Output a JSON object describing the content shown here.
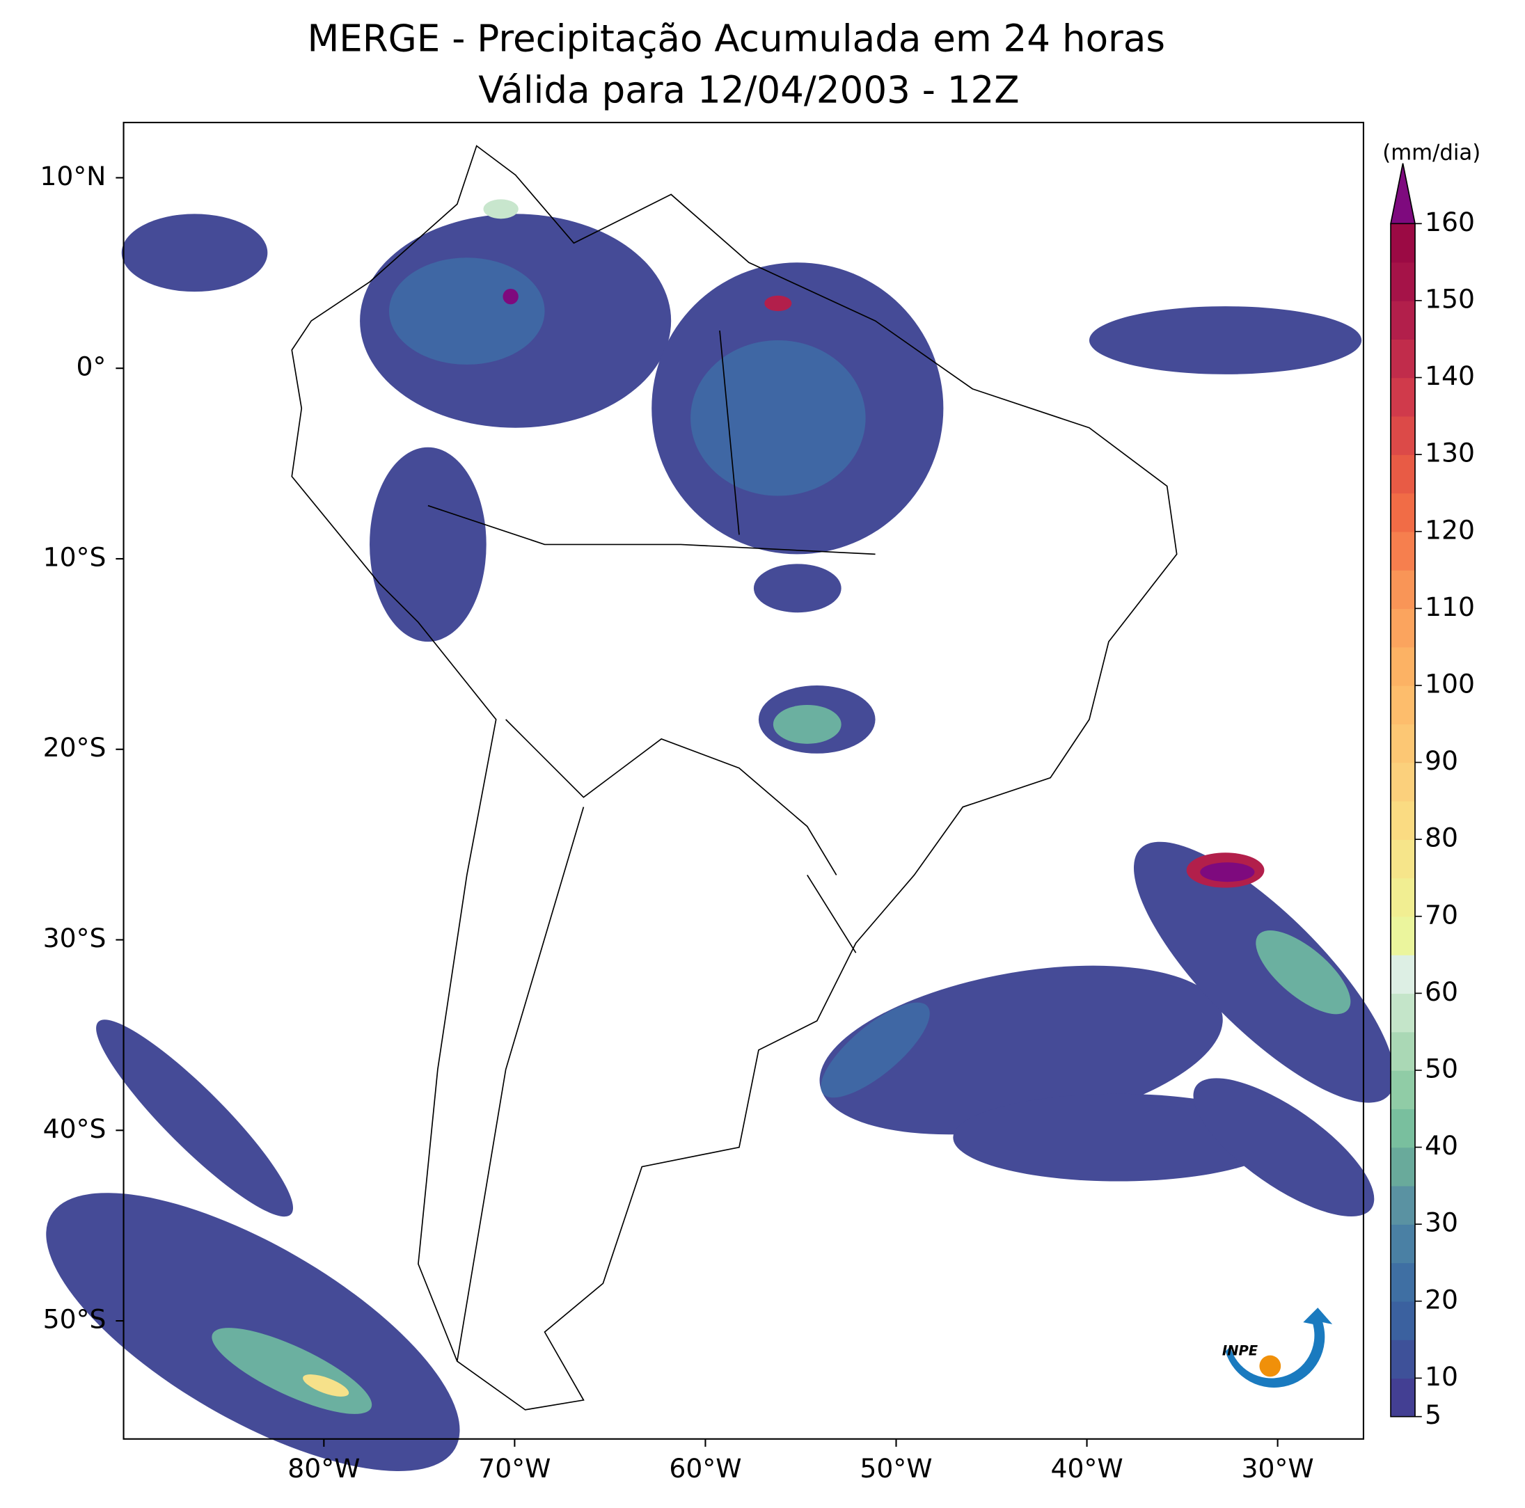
{
  "title": "MERGE - Precipitação Acumulada em 24 horas",
  "subtitle": "Válida para 12/04/2003 - 12Z",
  "map": {
    "xlim": [
      -90.5,
      -25.5
    ],
    "ylim": [
      -56.2,
      12.9
    ],
    "xticks": [
      {
        "value": -80,
        "label": "80°W"
      },
      {
        "value": -70,
        "label": "70°W"
      },
      {
        "value": -60,
        "label": "60°W"
      },
      {
        "value": -50,
        "label": "50°W"
      },
      {
        "value": -40,
        "label": "40°W"
      },
      {
        "value": -30,
        "label": "30°W"
      }
    ],
    "yticks": [
      {
        "value": 10,
        "label": "10°N"
      },
      {
        "value": 0,
        "label": "0°"
      },
      {
        "value": -10,
        "label": "10°S"
      },
      {
        "value": -20,
        "label": "20°S"
      },
      {
        "value": -30,
        "label": "30°S"
      },
      {
        "value": -40,
        "label": "40°S"
      },
      {
        "value": -50,
        "label": "50°S"
      }
    ]
  },
  "colorbar": {
    "label": "(mm/dia)",
    "lim": [
      5,
      160
    ],
    "ticks": [
      5,
      10,
      20,
      30,
      40,
      50,
      60,
      70,
      80,
      90,
      100,
      110,
      120,
      130,
      140,
      150,
      160
    ],
    "bounds": [
      5,
      10,
      15,
      20,
      25,
      30,
      35,
      40,
      45,
      50,
      55,
      60,
      65,
      70,
      75,
      80,
      85,
      90,
      95,
      100,
      105,
      110,
      115,
      120,
      125,
      130,
      135,
      140,
      145,
      150,
      155,
      160
    ],
    "colors": [
      "#433f93",
      "#3e5199",
      "#3b619f",
      "#3f6fa3",
      "#4a80a4",
      "#5a92a2",
      "#69aa9b",
      "#79bf9e",
      "#90cca6",
      "#aad8b5",
      "#c4e5c9",
      "#ddefe4",
      "#ebf59d",
      "#f1ee92",
      "#f6e58a",
      "#fadb82",
      "#fbd07c",
      "#fcc774",
      "#fdbd6c",
      "#fcb264",
      "#fba45e",
      "#f99557",
      "#f67f4e",
      "#f16c46",
      "#e85b45",
      "#dc4a48",
      "#d03a4b",
      "#c12c4b",
      "#b21f4b",
      "#a51348",
      "#9b0a44"
    ],
    "extend_color": "#7e0a7e"
  },
  "logo": {
    "text": "INPE"
  }
}
